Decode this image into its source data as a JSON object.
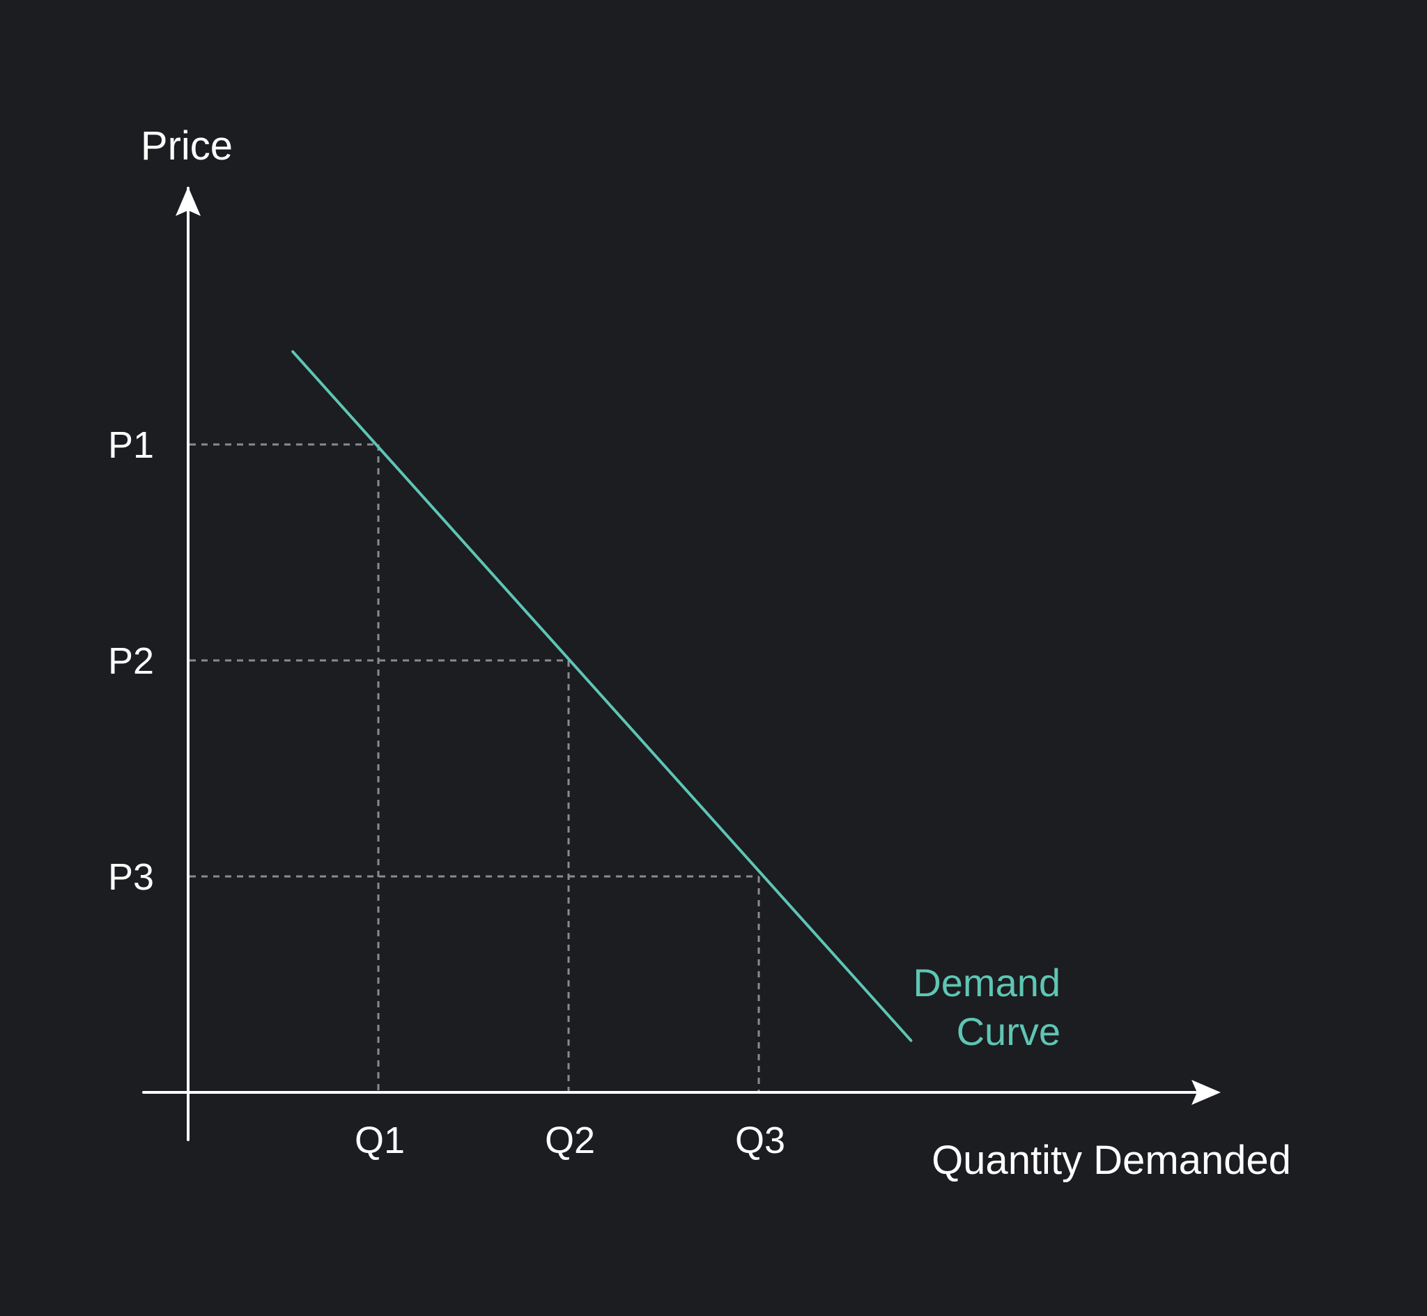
{
  "chart_data": {
    "type": "line",
    "title": "",
    "xlabel": "Quantity Demanded",
    "ylabel": "Price",
    "x_ticks": [
      "Q1",
      "Q2",
      "Q3"
    ],
    "y_ticks": [
      "P1",
      "P2",
      "P3"
    ],
    "x_tick_values": [
      1,
      2,
      3
    ],
    "y_tick_values": [
      3,
      2,
      1
    ],
    "xlim": [
      0,
      5.4
    ],
    "ylim": [
      0,
      4.6
    ],
    "grid": false,
    "reference_lines": "dashed guides from each P/Q pair to the axes",
    "series": [
      {
        "name": "Demand Curve",
        "color": "#5ec6b4",
        "points": [
          {
            "x": 0.55,
            "y": 3.43
          },
          {
            "x": 3.8,
            "y": 0.24
          }
        ]
      }
    ],
    "annotations": [
      {
        "text_line1": "Demand",
        "text_line2": "Curve",
        "color": "#5ec6b4"
      }
    ],
    "colors": {
      "background": "#1c1d21",
      "axes": "#ffffff",
      "guides": "#8a8b8f",
      "curve": "#5ec6b4"
    }
  }
}
